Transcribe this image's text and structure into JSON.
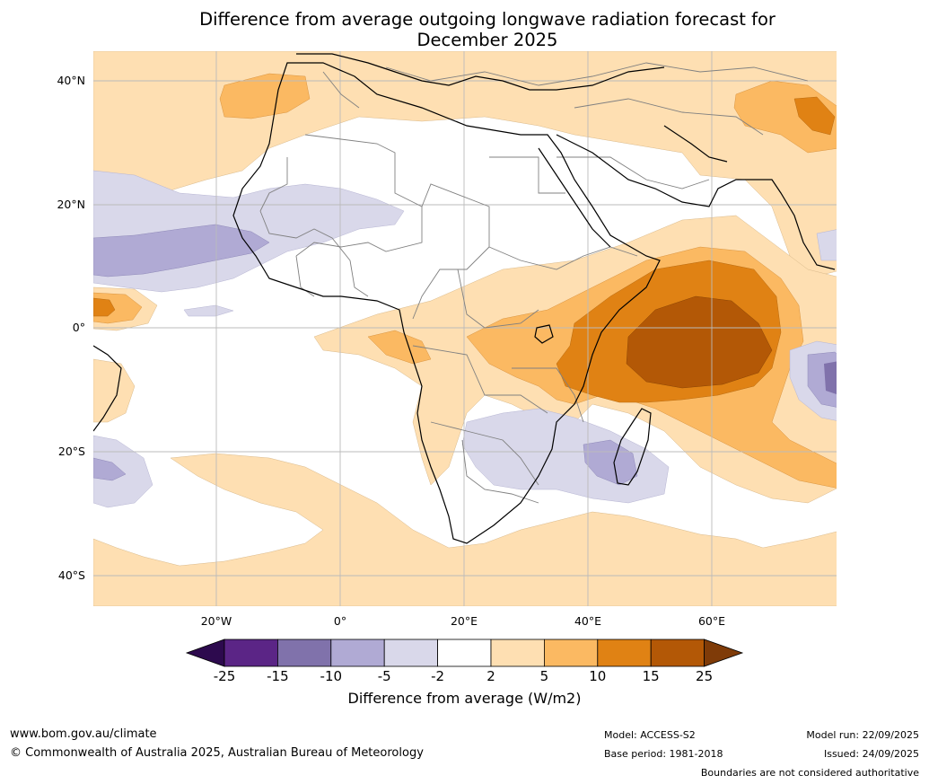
{
  "title": {
    "line1": "Difference from average outgoing longwave radiation forecast for",
    "line2": "December 2025"
  },
  "axes": {
    "lat_labels": [
      "40°N",
      "20°N",
      "0°",
      "20°S",
      "40°S"
    ],
    "lon_labels": [
      "20°W",
      "0°",
      "20°E",
      "40°E",
      "60°E"
    ]
  },
  "colorbar": {
    "ticks": [
      "-25",
      "-15",
      "-10",
      "-5",
      "-2",
      "2",
      "5",
      "10",
      "15",
      "25"
    ],
    "label": "Difference from average (W/m2)",
    "colors": {
      "extend_low": "#2d0a4e",
      "c_m25_m15": "#5b2586",
      "c_m15_m10": "#8072ab",
      "c_m10_m5": "#b0aad4",
      "c_m5_m2": "#d9d8ea",
      "c_m2_2": "#ffffff",
      "c_2_5": "#fedfb2",
      "c_5_10": "#fbb962",
      "c_10_15": "#e08214",
      "c_15_25": "#b35806",
      "extend_high": "#7f3b08"
    }
  },
  "footer": {
    "website": "www.bom.gov.au/climate",
    "copyright": "© Commonwealth of Australia 2025, Australian Bureau of Meteorology",
    "model": "Model: ACCESS-S2",
    "base_period": "Base period: 1981-2018",
    "model_run": "Model run: 22/09/2025",
    "issued": "Issued: 24/09/2025",
    "disclaimer": "Boundaries are not considered authoritative"
  }
}
